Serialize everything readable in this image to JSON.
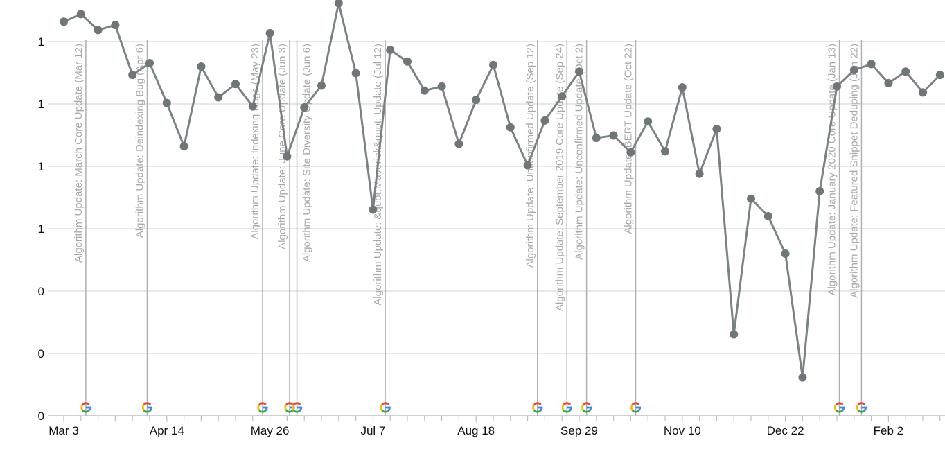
{
  "chart_data": {
    "type": "line",
    "title": "",
    "xlabel": "",
    "ylabel": "",
    "ylim": [
      0,
      1.2
    ],
    "grid": true,
    "y_ticks": [
      {
        "value": 0,
        "label": "0"
      },
      {
        "value": 0.2,
        "label": "0"
      },
      {
        "value": 0.4,
        "label": "0"
      },
      {
        "value": 0.6,
        "label": "1"
      },
      {
        "value": 0.8,
        "label": "1"
      },
      {
        "value": 1.0,
        "label": "1"
      },
      {
        "value": 1.2,
        "label": "1"
      }
    ],
    "x_ticks": [
      {
        "date": "2019-03-03",
        "label": "Mar 3"
      },
      {
        "date": "2019-04-14",
        "label": "Apr 14"
      },
      {
        "date": "2019-05-26",
        "label": "May 26"
      },
      {
        "date": "2019-07-07",
        "label": "Jul 7"
      },
      {
        "date": "2019-08-18",
        "label": "Aug 18"
      },
      {
        "date": "2019-09-29",
        "label": "Sep 29"
      },
      {
        "date": "2019-11-10",
        "label": "Nov 10"
      },
      {
        "date": "2019-12-22",
        "label": "Dec 22"
      },
      {
        "date": "2020-02-02",
        "label": "Feb 2"
      }
    ],
    "line_color": "#7a8284",
    "annotation_color": "#a9a9a9",
    "x": [
      "2019-03-03",
      "2019-03-10",
      "2019-03-17",
      "2019-03-24",
      "2019-03-31",
      "2019-04-07",
      "2019-04-14",
      "2019-04-21",
      "2019-04-28",
      "2019-05-05",
      "2019-05-12",
      "2019-05-19",
      "2019-05-26",
      "2019-06-02",
      "2019-06-09",
      "2019-06-16",
      "2019-06-23",
      "2019-06-30",
      "2019-07-07",
      "2019-07-14",
      "2019-07-21",
      "2019-07-28",
      "2019-08-04",
      "2019-08-11",
      "2019-08-18",
      "2019-08-25",
      "2019-09-01",
      "2019-09-08",
      "2019-09-15",
      "2019-09-22",
      "2019-09-29",
      "2019-10-06",
      "2019-10-13",
      "2019-10-20",
      "2019-10-27",
      "2019-11-03",
      "2019-11-10",
      "2019-11-17",
      "2019-11-24",
      "2019-12-01",
      "2019-12-08",
      "2019-12-15",
      "2019-12-22",
      "2019-12-29",
      "2020-01-05",
      "2020-01-12",
      "2020-01-19",
      "2020-01-26",
      "2020-02-02",
      "2020-02-09",
      "2020-02-16",
      "2020-02-23"
    ],
    "values": [
      1.264,
      1.288,
      1.237,
      1.253,
      1.093,
      1.131,
      1.003,
      0.864,
      1.12,
      1.021,
      1.064,
      0.992,
      1.227,
      0.832,
      0.989,
      1.059,
      1.323,
      1.099,
      0.661,
      1.173,
      1.136,
      1.043,
      1.056,
      0.872,
      1.013,
      1.125,
      0.925,
      0.803,
      0.947,
      1.024,
      1.104,
      0.891,
      0.899,
      0.845,
      0.944,
      0.848,
      1.053,
      0.776,
      0.92,
      0.261,
      0.696,
      0.64,
      0.52,
      0.123,
      0.72,
      1.056,
      1.109,
      1.128,
      1.067,
      1.104,
      1.037,
      1.093
    ],
    "annotations": [
      {
        "date": "2019-03-12",
        "label": "Algorithm Update: March Core Update (Mar 12)",
        "icon": "google-g-icon"
      },
      {
        "date": "2019-04-06",
        "label": "Algorithm Update: Deindexing Bug (Apr 6)",
        "icon": "google-g-icon"
      },
      {
        "date": "2019-05-23",
        "label": "Algorithm Update: Indexing Bugs (May 23)",
        "icon": "google-g-icon"
      },
      {
        "date": "2019-06-03",
        "label": "Algorithm Update: June Core Update (Jun 3)",
        "icon": "google-g-icon"
      },
      {
        "date": "2019-06-06",
        "label": "Algorithm Update: Site Diversity Update (Jun 6)",
        "icon": "google-g-icon"
      },
      {
        "date": "2019-07-12",
        "label": "Algorithm Update: &quot;Maverick&quot; Update (Jul 12)",
        "icon": "google-g-icon"
      },
      {
        "date": "2019-09-12",
        "label": "Algorithm Update: Unconfirmed Update (Sep 12)",
        "icon": "google-g-icon"
      },
      {
        "date": "2019-09-24",
        "label": "Algorithm Update: September 2019 Core Update (Sep 24)",
        "icon": "google-g-icon"
      },
      {
        "date": "2019-10-02",
        "label": "Algorithm Update: Unconfirmed Update (Oct 2)",
        "icon": "google-g-icon"
      },
      {
        "date": "2019-10-22",
        "label": "Algorithm Update: BERT Update (Oct 22)",
        "icon": "google-g-icon"
      },
      {
        "date": "2020-01-13",
        "label": "Algorithm Update: January 2020 Core Update (Jan 13)",
        "icon": "google-g-icon"
      },
      {
        "date": "2020-01-22",
        "label": "Algorithm Update: Featured Snippet Deduping (Jan 22)",
        "icon": "google-g-icon"
      }
    ]
  }
}
